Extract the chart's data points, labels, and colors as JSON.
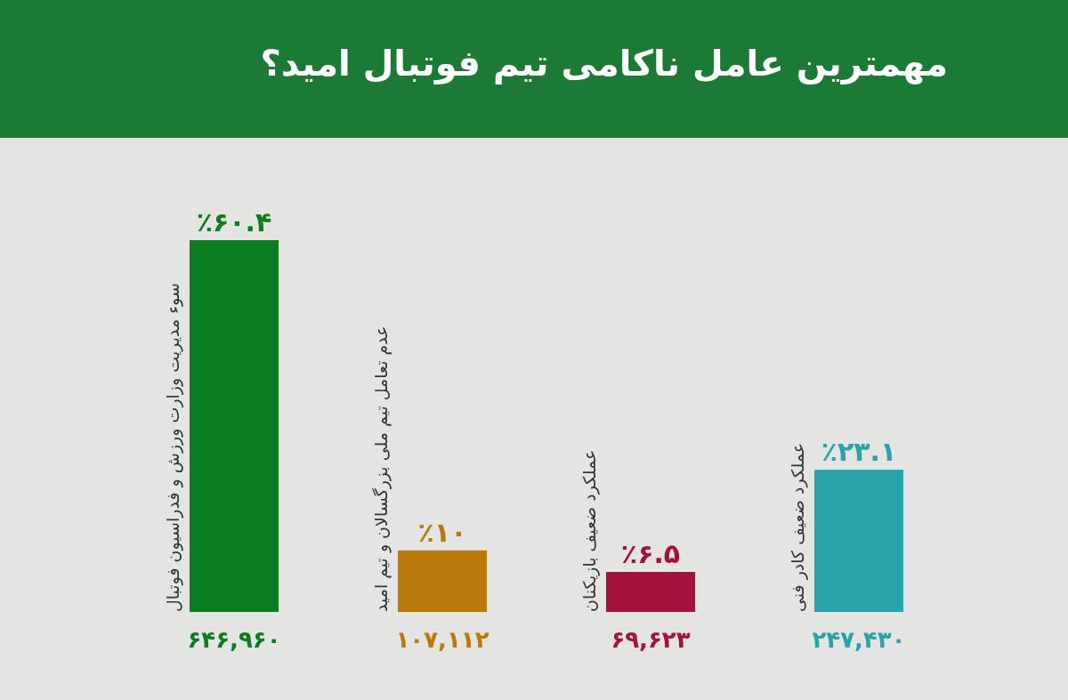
{
  "chart_data": {
    "type": "bar",
    "title": "مهمترین عامل ناکامی تیم فوتبال امید؟",
    "categories": [
      "سوء مدیریت وزارت ورزش و فدراسیون فوتبال",
      "عدم تعامل تیم ملی بزرگسالان و تیم امید",
      "عملکرد ضعیف بازیکنان",
      "عملکرد ضعیف کادر فنی"
    ],
    "values": [
      60.4,
      10,
      6.5,
      23.1
    ],
    "colors": [
      "#0b7d1e",
      "#b87a0a",
      "#a3123a",
      "#2aa3a8"
    ],
    "value_labels": [
      "٪۶۰.۴",
      "٪۱۰",
      "٪۶.۵",
      "٪۲۳.۱"
    ],
    "annotations": [
      "۶۴۶,۹۶۰",
      "۱۰۷,۱۱۲",
      "۶۹,۶۲۳",
      "۲۴۷,۴۳۰"
    ],
    "grid": false
  }
}
